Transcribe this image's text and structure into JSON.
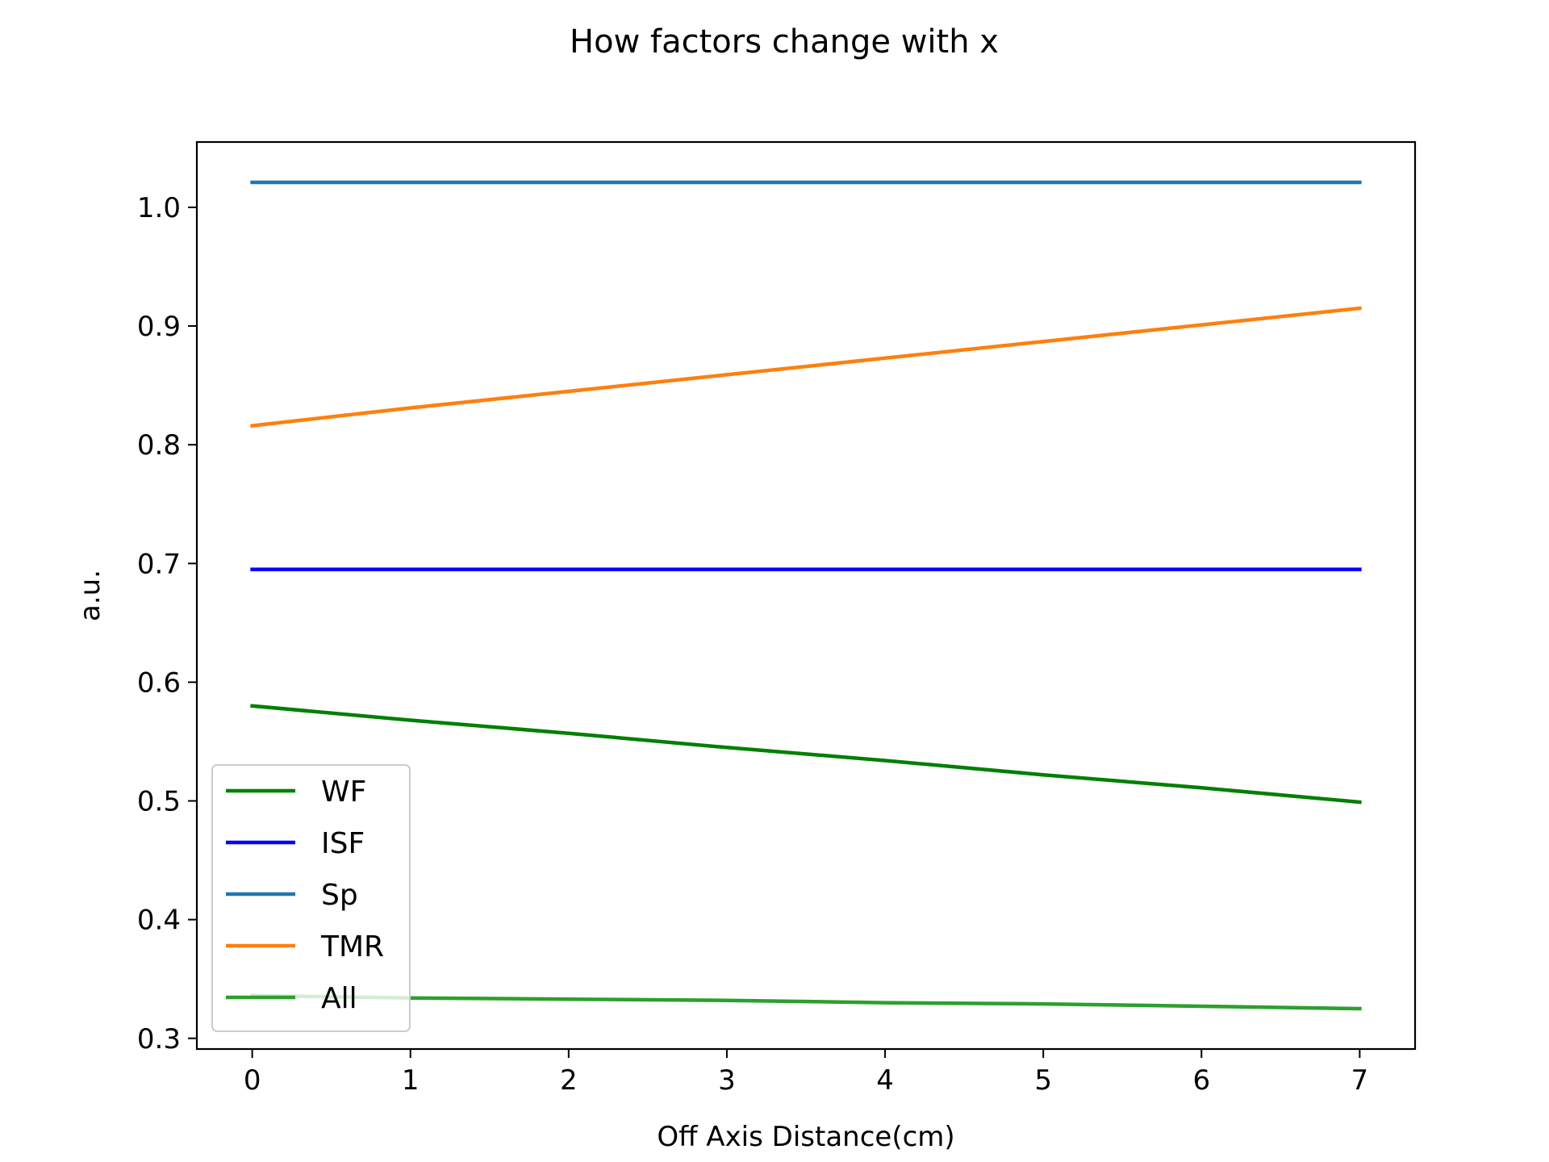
{
  "chart_data": {
    "type": "line",
    "title": "How factors change with x",
    "xlabel": "Off Axis Distance(cm)",
    "ylabel": "a.u.",
    "xlim": [
      -0.35,
      7.35
    ],
    "ylim": [
      0.291,
      1.055
    ],
    "x_ticks": [
      0,
      1,
      2,
      3,
      4,
      5,
      6,
      7
    ],
    "y_ticks": [
      0.3,
      0.4,
      0.5,
      0.6,
      0.7,
      0.8,
      0.9,
      1.0
    ],
    "y_tick_labels": [
      "0.3",
      "0.4",
      "0.5",
      "0.6",
      "0.7",
      "0.8",
      "0.9",
      "1.0"
    ],
    "grid": false,
    "legend_position": "lower-left",
    "x": [
      0,
      1,
      2,
      3,
      4,
      5,
      6,
      7
    ],
    "series": [
      {
        "name": "WF",
        "color": "#008000",
        "values": [
          0.58,
          0.568,
          0.557,
          0.545,
          0.534,
          0.522,
          0.511,
          0.499
        ]
      },
      {
        "name": "ISF",
        "color": "#0000ff",
        "values": [
          0.695,
          0.695,
          0.695,
          0.695,
          0.695,
          0.695,
          0.695,
          0.695
        ]
      },
      {
        "name": "Sp",
        "color": "#1f77b4",
        "values": [
          1.021,
          1.021,
          1.021,
          1.021,
          1.021,
          1.021,
          1.021,
          1.021
        ]
      },
      {
        "name": "TMR",
        "color": "#ff7f0e",
        "values": [
          0.816,
          0.831,
          0.845,
          0.859,
          0.873,
          0.887,
          0.901,
          0.915
        ]
      },
      {
        "name": "All",
        "color": "#2ca02c",
        "values": [
          0.336,
          0.334,
          0.333,
          0.332,
          0.33,
          0.329,
          0.327,
          0.325
        ]
      }
    ]
  }
}
